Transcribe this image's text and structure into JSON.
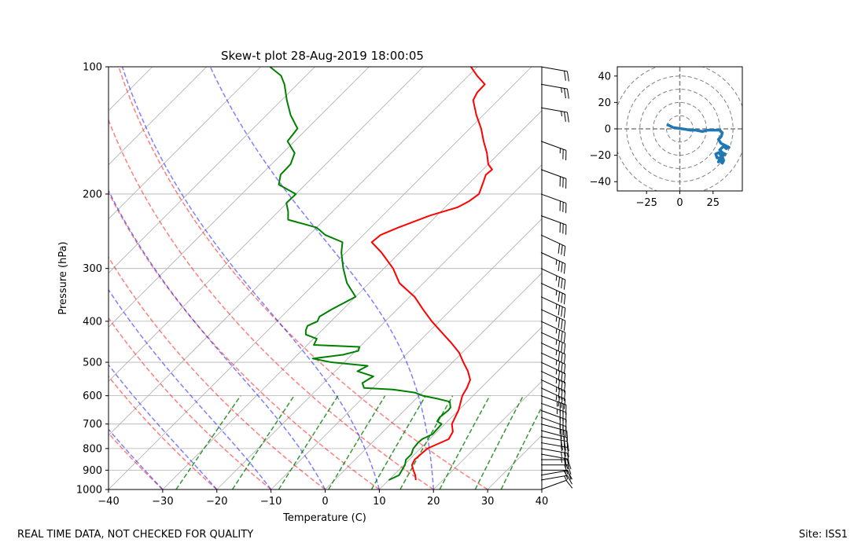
{
  "chart_data": [
    {
      "type": "line",
      "subtype": "skew-t log-p diagram",
      "title": "Skew-t plot 28-Aug-2019 18:00:05",
      "xlabel": "Temperature (C)",
      "ylabel": "Pressure (hPa)",
      "xlim": [
        -40,
        40
      ],
      "ylim": [
        1000,
        100
      ],
      "x_ticks": [
        "−40",
        "−30",
        "−20",
        "−10",
        "0",
        "10",
        "20",
        "30",
        "40"
      ],
      "x_tick_values": [
        -40,
        -30,
        -20,
        -10,
        0,
        10,
        20,
        30,
        40
      ],
      "y_ticks": [
        "100",
        "200",
        "300",
        "400",
        "500",
        "600",
        "700",
        "800",
        "900",
        "1000"
      ],
      "y_tick_values": [
        100,
        200,
        300,
        400,
        500,
        600,
        700,
        800,
        900,
        1000
      ],
      "grid": true,
      "isotherms_c": [
        -200,
        -190,
        -180,
        -170,
        -160,
        -150,
        -140,
        -130,
        -120,
        -110,
        -100,
        -90,
        -80,
        -70,
        -60,
        -50,
        -40,
        -30,
        -20,
        -10,
        0,
        10,
        20,
        30,
        40
      ],
      "dry_adiabats_c": [
        -30,
        -20,
        -10,
        0,
        10,
        20,
        30
      ],
      "moist_adiabats_c": [
        -40,
        -30,
        -20,
        -10,
        0,
        10,
        20
      ],
      "mixing_ratios_gkg": [
        0.4,
        1,
        2,
        4,
        7,
        10,
        16,
        24,
        32
      ],
      "mixing_ratio_top_hpa": 600,
      "series": [
        {
          "name": "Temperature",
          "color": "#ff0000",
          "pressure": [
            950,
            925,
            900,
            875,
            850,
            800,
            760,
            730,
            700,
            650,
            600,
            575,
            550,
            525,
            500,
            475,
            450,
            425,
            400,
            375,
            350,
            325,
            300,
            275,
            260,
            250,
            240,
            225,
            215,
            208,
            200,
            190,
            180,
            175,
            170,
            160,
            150,
            140,
            130,
            120,
            115,
            110,
            105,
            100
          ],
          "temp": [
            15,
            14,
            12.7,
            11.5,
            11,
            11.3,
            13.5,
            12.9,
            11.3,
            10,
            8,
            7.4,
            6.5,
            4.5,
            2,
            -0.5,
            -3.8,
            -7.5,
            -11.4,
            -15.2,
            -19.1,
            -24.4,
            -28.3,
            -33.4,
            -37.1,
            -36.8,
            -34.9,
            -31.3,
            -27.7,
            -26.7,
            -26.2,
            -27.3,
            -28.5,
            -28.3,
            -30,
            -32.3,
            -35.1,
            -37.9,
            -41.3,
            -44.6,
            -45.3,
            -45.4,
            -48.4,
            -51.2
          ]
        },
        {
          "name": "Dewpoint",
          "color": "#008000",
          "pressure": [
            950,
            925,
            900,
            875,
            850,
            825,
            800,
            775,
            760,
            740,
            700,
            690,
            675,
            650,
            640,
            620,
            610,
            600,
            590,
            580,
            575,
            560,
            540,
            525,
            510,
            500,
            490,
            480,
            470,
            460,
            455,
            440,
            430,
            420,
            410,
            400,
            390,
            375,
            350,
            325,
            300,
            275,
            260,
            250,
            240,
            230,
            220,
            210,
            200,
            190,
            180,
            170,
            160,
            150,
            140,
            130,
            120,
            110,
            105,
            100
          ],
          "temp": [
            10,
            11,
            10.6,
            10.2,
            9.4,
            9.4,
            8.7,
            8.5,
            8.6,
            9.6,
            9.4,
            8.1,
            7.8,
            8.1,
            8,
            6.8,
            4,
            0.7,
            -1.3,
            -6,
            -11.6,
            -12.8,
            -12,
            -15.9,
            -15,
            -22.4,
            -26.5,
            -21.6,
            -19.5,
            -20,
            -28.8,
            -29.4,
            -32.2,
            -33,
            -33.5,
            -32.5,
            -33,
            -32.1,
            -30,
            -34.1,
            -37.5,
            -40.8,
            -42.5,
            -47,
            -50,
            -56.7,
            -58.2,
            -60.1,
            -60,
            -64.9,
            -66.4,
            -66.5,
            -67.8,
            -71.3,
            -71.8,
            -75.6,
            -79,
            -82.4,
            -84.6,
            -88.3
          ]
        }
      ],
      "wind_barbs": {
        "color": "#000000",
        "levels_hpa": [
          1000,
          950,
          925,
          900,
          875,
          850,
          825,
          800,
          775,
          750,
          725,
          700,
          675,
          650,
          625,
          600,
          575,
          550,
          525,
          500,
          475,
          450,
          425,
          400,
          375,
          350,
          325,
          300,
          275,
          250,
          225,
          200,
          175,
          150,
          125,
          110,
          100
        ],
        "speed_kt": [
          10,
          15,
          15,
          20,
          20,
          20,
          25,
          25,
          25,
          30,
          30,
          30,
          30,
          30,
          35,
          35,
          35,
          35,
          35,
          35,
          35,
          35,
          35,
          35,
          35,
          35,
          35,
          35,
          35,
          30,
          30,
          30,
          30,
          25,
          25,
          25,
          20
        ],
        "direction_deg": [
          70,
          80,
          80,
          90,
          90,
          90,
          100,
          100,
          100,
          100,
          105,
          105,
          110,
          110,
          110,
          110,
          115,
          115,
          115,
          115,
          115,
          115,
          115,
          115,
          115,
          115,
          115,
          115,
          115,
          115,
          110,
          110,
          110,
          110,
          100,
          100,
          100
        ]
      }
    },
    {
      "type": "line",
      "subtype": "hodograph",
      "title": "",
      "xlim": [
        -47,
        47
      ],
      "ylim": [
        -47,
        47
      ],
      "x_ticks": [
        "−25",
        "0",
        "25"
      ],
      "x_tick_values": [
        -25,
        0,
        25
      ],
      "y_ticks": [
        "40",
        "20",
        "0",
        "−20",
        "−40"
      ],
      "y_tick_values": [
        40,
        20,
        0,
        -20,
        -40
      ],
      "rings": [
        10,
        20,
        30,
        40,
        50
      ],
      "series": [
        {
          "name": "wind",
          "color": "#1f77b4",
          "u": [
            -9,
            -5,
            2,
            8,
            12,
            17,
            21,
            25,
            30,
            32,
            31,
            29,
            31,
            33,
            35,
            37,
            35,
            33,
            30,
            32,
            34,
            33,
            31,
            29,
            27,
            28,
            30,
            32,
            33,
            32,
            30,
            29,
            30,
            31,
            32,
            33,
            32,
            31,
            30
          ],
          "v": [
            3,
            1,
            0,
            -1,
            -1,
            -2,
            -1,
            -1,
            -1,
            -3,
            -6,
            -8,
            -11,
            -12,
            -13,
            -14,
            -15,
            -13,
            -16,
            -18,
            -19,
            -20,
            -20,
            -18,
            -19,
            -22,
            -22,
            -21,
            -24,
            -26,
            -24,
            -25,
            -23,
            -21,
            -22,
            -24,
            -25,
            -23,
            -22
          ]
        }
      ]
    }
  ],
  "footer": {
    "left": "REAL TIME DATA, NOT CHECKED FOR QUALITY",
    "right": "Site: ISS1"
  }
}
